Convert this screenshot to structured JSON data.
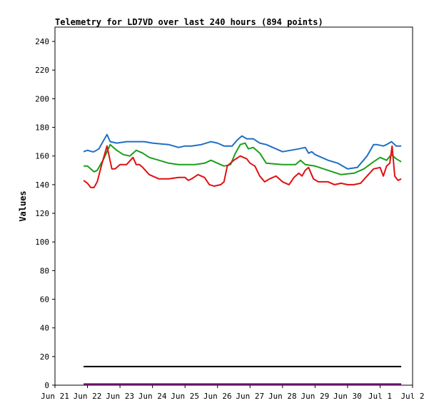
{
  "chart_data": {
    "type": "line",
    "title": "Telemetry for LD7VD over last 240 hours (894 points)",
    "xlabel": "",
    "ylabel": "Values",
    "ylim": [
      0,
      250
    ],
    "yticks": [
      0,
      20,
      40,
      60,
      80,
      100,
      120,
      140,
      160,
      180,
      200,
      220,
      240
    ],
    "xlim": [
      0,
      11
    ],
    "xticks": [
      {
        "x": 0,
        "label": "Jun 21"
      },
      {
        "x": 1,
        "label": "Jun 22"
      },
      {
        "x": 2,
        "label": "Jun 23"
      },
      {
        "x": 3,
        "label": "Jun 24"
      },
      {
        "x": 4,
        "label": "Jun 25"
      },
      {
        "x": 5,
        "label": "Jun 26"
      },
      {
        "x": 6,
        "label": "Jun 27"
      },
      {
        "x": 7,
        "label": "Jun 28"
      },
      {
        "x": 8,
        "label": "Jun 29"
      },
      {
        "x": 9,
        "label": "Jun 30"
      },
      {
        "x": 10,
        "label": "Jul 1"
      },
      {
        "x": 11,
        "label": "Jul 2"
      }
    ],
    "grid": false,
    "series": [
      {
        "color": "#1f6fc5",
        "x": [
          0.88,
          1.0,
          1.15,
          1.2,
          1.35,
          1.5,
          1.6,
          1.7,
          1.9,
          2.2,
          2.5,
          2.75,
          3.0,
          3.5,
          3.8,
          4.0,
          4.2,
          4.5,
          4.8,
          5.0,
          5.2,
          5.45,
          5.6,
          5.75,
          5.9,
          6.1,
          6.3,
          6.5,
          7.0,
          7.5,
          7.7,
          7.8,
          7.9,
          8.0,
          8.2,
          8.4,
          8.7,
          9.0,
          9.3,
          9.6,
          9.8,
          9.9,
          10.1,
          10.2,
          10.35,
          10.5,
          10.65
        ],
        "y": [
          163,
          164,
          163,
          163,
          165,
          171,
          175,
          170,
          169,
          170,
          170,
          170,
          169,
          168,
          166,
          167,
          167,
          168,
          170,
          169,
          167,
          167,
          171,
          174,
          172,
          172,
          169,
          168,
          163,
          165,
          166,
          162,
          163,
          161,
          159,
          157,
          155,
          151,
          152,
          160,
          168,
          168,
          167,
          168,
          170,
          167,
          167
        ]
      },
      {
        "color": "#1aa01a",
        "x": [
          0.88,
          1.0,
          1.1,
          1.2,
          1.3,
          1.5,
          1.7,
          1.9,
          2.1,
          2.3,
          2.5,
          2.7,
          2.9,
          3.2,
          3.5,
          3.8,
          4.0,
          4.3,
          4.6,
          4.8,
          5.0,
          5.2,
          5.4,
          5.55,
          5.7,
          5.85,
          5.95,
          6.1,
          6.3,
          6.5,
          7.0,
          7.4,
          7.55,
          7.7,
          8.0,
          8.4,
          8.8,
          9.2,
          9.5,
          9.8,
          10.0,
          10.2,
          10.35,
          10.5,
          10.65
        ],
        "y": [
          153,
          153,
          151,
          149,
          150,
          158,
          168,
          164,
          161,
          160,
          164,
          162,
          159,
          157,
          155,
          154,
          154,
          154,
          155,
          157,
          155,
          153,
          154,
          162,
          168,
          169,
          165,
          166,
          162,
          155,
          154,
          154,
          157,
          154,
          153,
          150,
          147,
          148,
          151,
          156,
          159,
          157,
          161,
          158,
          156
        ]
      },
      {
        "color": "#e01010",
        "x": [
          0.88,
          1.0,
          1.1,
          1.2,
          1.3,
          1.45,
          1.6,
          1.75,
          1.85,
          2.0,
          2.2,
          2.4,
          2.5,
          2.6,
          2.7,
          2.9,
          3.0,
          3.2,
          3.5,
          3.8,
          4.0,
          4.1,
          4.2,
          4.4,
          4.6,
          4.75,
          4.9,
          5.1,
          5.2,
          5.3,
          5.5,
          5.7,
          5.9,
          6.0,
          6.15,
          6.3,
          6.45,
          6.6,
          6.8,
          7.0,
          7.2,
          7.35,
          7.5,
          7.6,
          7.7,
          7.8,
          7.95,
          8.1,
          8.4,
          8.6,
          8.8,
          9.0,
          9.2,
          9.4,
          9.6,
          9.8,
          10.0,
          10.1,
          10.2,
          10.3,
          10.37,
          10.45,
          10.55,
          10.65
        ],
        "y": [
          143,
          141,
          138,
          138,
          142,
          155,
          167,
          151,
          151,
          154,
          154,
          159,
          154,
          154,
          152,
          147,
          146,
          144,
          144,
          145,
          145,
          143,
          144,
          147,
          145,
          140,
          139,
          140,
          142,
          153,
          157,
          160,
          158,
          155,
          153,
          146,
          142,
          144,
          146,
          142,
          140,
          145,
          148,
          146,
          150,
          152,
          144,
          142,
          142,
          140,
          141,
          140,
          140,
          141,
          146,
          151,
          152,
          146,
          153,
          155,
          167,
          146,
          143,
          144
        ]
      },
      {
        "color": "#000000",
        "x": [
          0.88,
          10.65
        ],
        "y": [
          13,
          13
        ]
      },
      {
        "color": "#800080",
        "x": [
          0.88,
          10.65
        ],
        "y": [
          0.8,
          0.8
        ]
      }
    ]
  }
}
